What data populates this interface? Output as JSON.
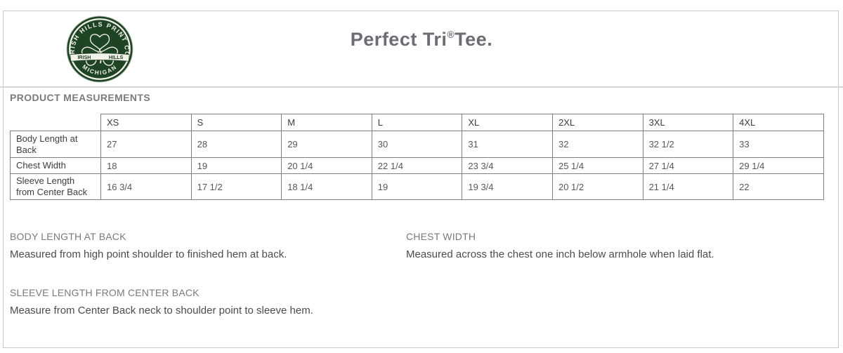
{
  "page": {
    "title": {
      "prefix": "Perfect Tri",
      "reg": "®",
      "suffix": "Tee."
    },
    "section_heading": "PRODUCT MEASUREMENTS"
  },
  "logo": {
    "arc_top": "IRISH HILLS PRINT CO",
    "banner_left": "IRISH",
    "banner_right": "HILLS",
    "arc_bottom": "MICHIGAN",
    "colors": {
      "green": "#1f4423",
      "cream": "#f2f1ea"
    }
  },
  "table": {
    "sizes": [
      "XS",
      "S",
      "M",
      "L",
      "XL",
      "2XL",
      "3XL",
      "4XL"
    ],
    "rows": [
      {
        "label": "Body Length at Back",
        "values": [
          "27",
          "28",
          "29",
          "30",
          "31",
          "32",
          "32 1/2",
          "33"
        ]
      },
      {
        "label": "Chest Width",
        "values": [
          "18",
          "19",
          "20 1/4",
          "22 1/4",
          "23 3/4",
          "25 1/4",
          "27 1/4",
          "29 1/4"
        ]
      },
      {
        "label": "Sleeve Length from Center Back",
        "values": [
          "16 3/4",
          "17 1/2",
          "18 1/4",
          "19",
          "19 3/4",
          "20 1/2",
          "21 1/4",
          "22"
        ]
      }
    ]
  },
  "definitions": [
    {
      "heading": "BODY LENGTH AT BACK",
      "text": "Measured from high point shoulder to finished hem at back."
    },
    {
      "heading": "CHEST WIDTH",
      "text": "Measured across the chest one inch below armhole when laid flat."
    },
    {
      "heading": "SLEEVE LENGTH FROM CENTER BACK",
      "text": "Measure from Center Back neck to shoulder point to sleeve hem."
    }
  ],
  "colors": {
    "title_gray": "#6e6b74",
    "heading_gray": "#7a7a7a",
    "body_gray": "#4c4c4c",
    "table_border": "#7f7f7f",
    "logo_green": "#1f4423"
  }
}
